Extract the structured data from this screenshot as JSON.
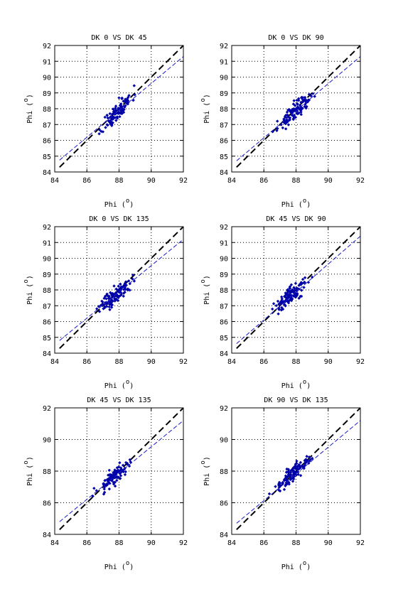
{
  "colors": {
    "points": "#0000a8",
    "fit": "#1a1acc",
    "identity": "#000000",
    "grid": "#000000"
  },
  "chart_data": [
    {
      "type": "scatter",
      "title": "DK  0 VS DK 45",
      "xlabel": "Phi",
      "ylabel": "Phi",
      "unit": "o",
      "xlim": [
        84,
        92
      ],
      "ylim": [
        84,
        92
      ],
      "xticks": [
        "84",
        "86",
        "88",
        "90",
        "92"
      ],
      "yticks": [
        "84",
        "85",
        "86",
        "87",
        "88",
        "89",
        "90",
        "91",
        "92"
      ],
      "yticks_values": [
        84,
        85,
        86,
        87,
        88,
        89,
        90,
        91,
        92
      ],
      "grid": true,
      "cluster": {
        "cx": 87.9,
        "cy": 87.8,
        "sx": 0.45,
        "sy": 0.55,
        "rho": 0.85,
        "n": 110,
        "seed": 11
      },
      "fit_line": {
        "x": [
          84.3,
          92
        ],
        "y": [
          84.75,
          91.3
        ]
      },
      "identity_line": {
        "x": [
          84.3,
          92
        ],
        "y": [
          84.3,
          92
        ]
      }
    },
    {
      "type": "scatter",
      "title": "DK  0 VS DK 90",
      "xlabel": "Phi",
      "ylabel": "Phi",
      "unit": "o",
      "xlim": [
        84,
        92
      ],
      "ylim": [
        84,
        92
      ],
      "xticks": [
        "84",
        "86",
        "88",
        "90",
        "92"
      ],
      "yticks": [
        "84",
        "85",
        "86",
        "87",
        "88",
        "89",
        "90",
        "91",
        "92"
      ],
      "yticks_values": [
        84,
        85,
        86,
        87,
        88,
        89,
        90,
        91,
        92
      ],
      "grid": true,
      "cluster": {
        "cx": 87.9,
        "cy": 87.8,
        "sx": 0.5,
        "sy": 0.5,
        "rho": 0.88,
        "n": 110,
        "seed": 23
      },
      "fit_line": {
        "x": [
          84.3,
          92
        ],
        "y": [
          84.7,
          91.3
        ]
      },
      "identity_line": {
        "x": [
          84.3,
          92
        ],
        "y": [
          84.3,
          92
        ]
      }
    },
    {
      "type": "scatter",
      "title": "DK  0 VS DK 135",
      "xlabel": "Phi",
      "ylabel": "Phi",
      "unit": "o",
      "xlim": [
        84,
        92
      ],
      "ylim": [
        84,
        92
      ],
      "xticks": [
        "84",
        "86",
        "88",
        "90",
        "92"
      ],
      "yticks": [
        "84",
        "85",
        "86",
        "87",
        "88",
        "89",
        "90",
        "91",
        "92"
      ],
      "yticks_values": [
        84,
        85,
        86,
        87,
        88,
        89,
        90,
        91,
        92
      ],
      "grid": true,
      "cluster": {
        "cx": 87.8,
        "cy": 87.7,
        "sx": 0.5,
        "sy": 0.5,
        "rho": 0.85,
        "n": 110,
        "seed": 37
      },
      "fit_line": {
        "x": [
          84.3,
          92
        ],
        "y": [
          84.8,
          91.2
        ]
      },
      "identity_line": {
        "x": [
          84.3,
          92
        ],
        "y": [
          84.3,
          92
        ]
      }
    },
    {
      "type": "scatter",
      "title": "DK 45 VS DK 90",
      "xlabel": "Phi",
      "ylabel": "Phi",
      "unit": "o",
      "xlim": [
        84,
        92
      ],
      "ylim": [
        84,
        92
      ],
      "xticks": [
        "84",
        "86",
        "88",
        "90",
        "92"
      ],
      "yticks": [
        "84",
        "85",
        "86",
        "87",
        "88",
        "89",
        "90",
        "91",
        "92"
      ],
      "yticks_values": [
        84,
        85,
        86,
        87,
        88,
        89,
        90,
        91,
        92
      ],
      "grid": true,
      "cluster": {
        "cx": 87.7,
        "cy": 87.7,
        "sx": 0.5,
        "sy": 0.5,
        "rho": 0.86,
        "n": 110,
        "seed": 41
      },
      "fit_line": {
        "x": [
          84.3,
          92
        ],
        "y": [
          84.6,
          91.4
        ]
      },
      "identity_line": {
        "x": [
          84.3,
          92
        ],
        "y": [
          84.3,
          92
        ]
      }
    },
    {
      "type": "scatter",
      "title": "DK 45 VS DK 135",
      "xlabel": "Phi",
      "ylabel": "Phi",
      "unit": "o",
      "xlim": [
        84,
        92
      ],
      "ylim": [
        84,
        92
      ],
      "xticks": [
        "84",
        "86",
        "88",
        "90",
        "92"
      ],
      "yticks": [
        "84",
        "86",
        "88",
        "90",
        "92"
      ],
      "yticks_values": [
        84,
        86,
        88,
        90,
        92
      ],
      "grid": true,
      "cluster": {
        "cx": 87.7,
        "cy": 87.7,
        "sx": 0.5,
        "sy": 0.5,
        "rho": 0.87,
        "n": 110,
        "seed": 53
      },
      "fit_line": {
        "x": [
          84.3,
          92
        ],
        "y": [
          84.8,
          91.2
        ]
      },
      "identity_line": {
        "x": [
          84.3,
          92
        ],
        "y": [
          84.3,
          92
        ]
      }
    },
    {
      "type": "scatter",
      "title": "DK 90 VS DK 135",
      "xlabel": "Phi",
      "ylabel": "Phi",
      "unit": "o",
      "xlim": [
        84,
        92
      ],
      "ylim": [
        84,
        92
      ],
      "xticks": [
        "84",
        "86",
        "88",
        "90",
        "92"
      ],
      "yticks": [
        "84",
        "86",
        "88",
        "90",
        "92"
      ],
      "yticks_values": [
        84,
        86,
        88,
        90,
        92
      ],
      "grid": true,
      "cluster": {
        "cx": 87.8,
        "cy": 87.8,
        "sx": 0.5,
        "sy": 0.5,
        "rho": 0.87,
        "n": 110,
        "seed": 67
      },
      "fit_line": {
        "x": [
          84.3,
          92
        ],
        "y": [
          84.7,
          91.2
        ]
      },
      "identity_line": {
        "x": [
          84.3,
          92
        ],
        "y": [
          84.3,
          92
        ]
      }
    }
  ]
}
